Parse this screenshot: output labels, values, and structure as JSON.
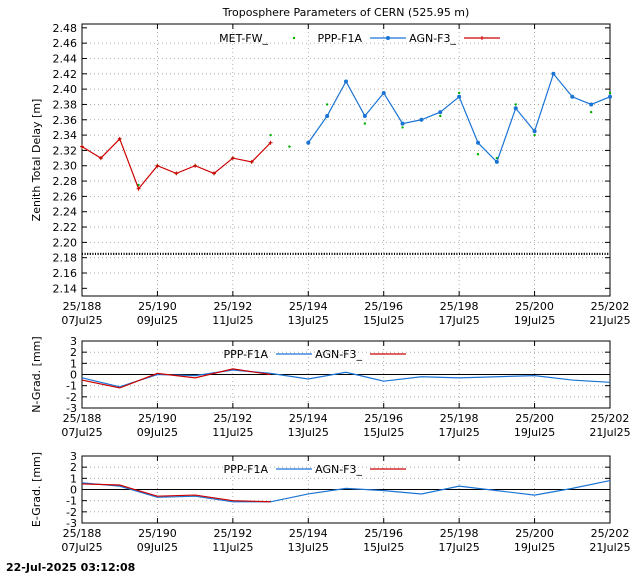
{
  "footer": {
    "timestamp": "22-Jul-2025 03:12:08"
  },
  "chart_data": [
    {
      "type": "scatter",
      "title": "Troposphere Parameters of CERN (525.95 m)",
      "ylabel": "Zenith Total Delay [m]",
      "xlim": [
        188,
        202
      ],
      "ylim": [
        2.13,
        2.485
      ],
      "yticks": [
        2.14,
        2.16,
        2.18,
        2.2,
        2.22,
        2.24,
        2.26,
        2.28,
        2.3,
        2.32,
        2.34,
        2.36,
        2.38,
        2.4,
        2.42,
        2.44,
        2.46,
        2.48
      ],
      "ytick_labels": [
        "2.14",
        "2.16",
        "2.18",
        "2.20",
        "2.22",
        "2.24",
        "2.26",
        "2.28",
        "2.30",
        "2.32",
        "2.34",
        "2.36",
        "2.38",
        "2.40",
        "2.42",
        "2.44",
        "2.46",
        "2.48"
      ],
      "xticks": [
        188,
        190,
        192,
        194,
        196,
        198,
        200,
        202
      ],
      "xtick_labels_top": [
        "25/188",
        "25/190",
        "25/192",
        "25/194",
        "25/196",
        "25/198",
        "25/200",
        "25/202"
      ],
      "xtick_labels_bottom": [
        "07Jul25",
        "09Jul25",
        "11Jul25",
        "13Jul25",
        "15Jul25",
        "17Jul25",
        "19Jul25",
        "21Jul25"
      ],
      "grid": true,
      "legend_position": "top-center",
      "series": [
        {
          "name": "MET-FW_",
          "color": "#00b000",
          "marker": "dot",
          "x": [
            188,
            188.5,
            189,
            189.5,
            190,
            190.5,
            191,
            191.5,
            192,
            192.5,
            193,
            193.5,
            194,
            194.5,
            195,
            195.5,
            196,
            196.5,
            197,
            197.5,
            198,
            198.5,
            199,
            199.5,
            200,
            200.5,
            201,
            201.5,
            202
          ],
          "y": [
            2.325,
            2.31,
            2.335,
            2.275,
            2.3,
            2.29,
            2.3,
            2.29,
            2.31,
            2.305,
            2.34,
            2.325,
            2.33,
            2.38,
            2.41,
            2.355,
            2.395,
            2.35,
            2.36,
            2.365,
            2.395,
            2.315,
            2.31,
            2.38,
            2.34,
            2.42,
            2.39,
            2.37,
            2.395
          ]
        },
        {
          "name": "PPP-F1A",
          "color": "#1a74d4",
          "marker": "circle",
          "x": [
            194,
            194.5,
            195,
            195.5,
            196,
            196.5,
            197,
            197.5,
            198,
            198.5,
            199,
            199.5,
            200,
            200.5,
            201,
            201.5,
            202
          ],
          "y": [
            2.33,
            2.365,
            2.41,
            2.365,
            2.395,
            2.355,
            2.36,
            2.37,
            2.39,
            2.33,
            2.305,
            2.375,
            2.345,
            2.42,
            2.39,
            2.38,
            2.39
          ]
        },
        {
          "name": "AGN-F3_",
          "color": "#cc0000",
          "marker": "plus",
          "x": [
            188,
            188.5,
            189,
            189.5,
            190,
            190.5,
            191,
            191.5,
            192,
            192.5,
            193
          ],
          "y": [
            2.325,
            2.31,
            2.335,
            2.27,
            2.3,
            2.29,
            2.3,
            2.29,
            2.31,
            2.305,
            2.33
          ]
        },
        {
          "name": "",
          "color": "#000000",
          "marker": "dot",
          "x": [
            188,
            202
          ],
          "y": [
            2.185,
            2.185
          ]
        }
      ]
    },
    {
      "type": "line",
      "ylabel": "N-Grad. [mm]",
      "xlim": [
        188,
        202
      ],
      "ylim": [
        -3,
        3
      ],
      "yticks": [
        -3,
        -2,
        -1,
        0,
        1,
        2,
        3
      ],
      "ytick_labels": [
        "-3",
        "-2",
        "-1",
        "0",
        "1",
        "2",
        "3"
      ],
      "xticks": [
        188,
        190,
        192,
        194,
        196,
        198,
        200,
        202
      ],
      "xtick_labels_top": [
        "25/188",
        "25/190",
        "25/192",
        "25/194",
        "25/196",
        "25/198",
        "25/200",
        "25/202"
      ],
      "xtick_labels_bottom": [
        "07Jul25",
        "09Jul25",
        "11Jul25",
        "13Jul25",
        "15Jul25",
        "17Jul25",
        "19Jul25",
        "21Jul25"
      ],
      "grid": true,
      "legend_position": "top-center",
      "series": [
        {
          "name": "PPP-F1A",
          "color": "#1a74d4",
          "x": [
            188,
            189,
            190,
            191,
            192,
            193,
            194,
            195,
            196,
            197,
            198,
            199,
            200,
            201,
            202
          ],
          "y": [
            -0.3,
            -1.1,
            0.0,
            -0.1,
            0.4,
            0.1,
            -0.4,
            0.2,
            -0.6,
            -0.2,
            -0.3,
            -0.2,
            -0.1,
            -0.5,
            -0.7
          ]
        },
        {
          "name": "AGN-F3_",
          "color": "#cc0000",
          "x": [
            188,
            189,
            190,
            191,
            192,
            193
          ],
          "y": [
            -0.5,
            -1.2,
            0.1,
            -0.3,
            0.5,
            0.0
          ]
        }
      ]
    },
    {
      "type": "line",
      "ylabel": "E-Grad. [mm]",
      "xlim": [
        188,
        202
      ],
      "ylim": [
        -3,
        3
      ],
      "yticks": [
        -3,
        -2,
        -1,
        0,
        1,
        2,
        3
      ],
      "ytick_labels": [
        "-3",
        "-2",
        "-1",
        "0",
        "1",
        "2",
        "3"
      ],
      "xticks": [
        188,
        190,
        192,
        194,
        196,
        198,
        200,
        202
      ],
      "xtick_labels_top": [
        "25/188",
        "25/190",
        "25/192",
        "25/194",
        "25/196",
        "25/198",
        "25/200",
        "25/202"
      ],
      "xtick_labels_bottom": [
        "07Jul25",
        "09Jul25",
        "11Jul25",
        "13Jul25",
        "15Jul25",
        "17Jul25",
        "19Jul25",
        "21Jul25"
      ],
      "grid": true,
      "legend_position": "top-center",
      "series": [
        {
          "name": "PPP-F1A",
          "color": "#1a74d4",
          "x": [
            188,
            189,
            190,
            191,
            192,
            193,
            194,
            195,
            196,
            197,
            198,
            199,
            200,
            201,
            202
          ],
          "y": [
            0.6,
            0.3,
            -0.7,
            -0.6,
            -1.1,
            -1.1,
            -0.4,
            0.1,
            -0.1,
            -0.4,
            0.3,
            -0.1,
            -0.5,
            0.1,
            0.8
          ]
        },
        {
          "name": "AGN-F3_",
          "color": "#cc0000",
          "x": [
            188,
            189,
            190,
            191,
            192,
            193
          ],
          "y": [
            0.5,
            0.4,
            -0.6,
            -0.5,
            -1.0,
            -1.1
          ]
        }
      ]
    }
  ]
}
